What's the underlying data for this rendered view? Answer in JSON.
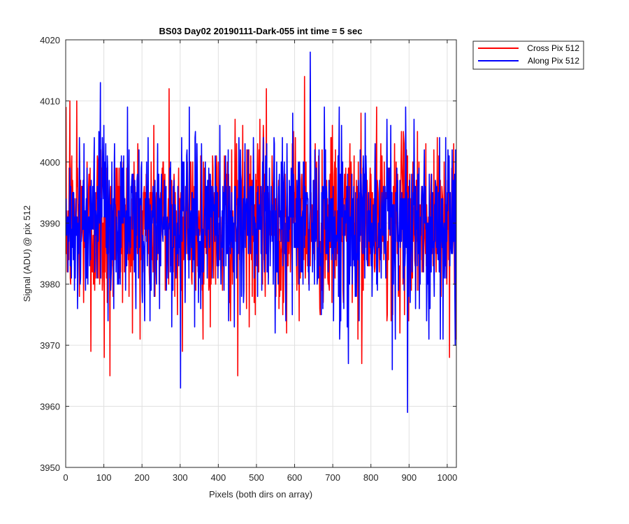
{
  "chart_data": {
    "type": "line",
    "title": "BS03 Day02 20190111-Dark-055 int time = 5 sec",
    "xlabel": "Pixels (both dirs on array)",
    "ylabel": "Signal (ADU) @ pix 512",
    "xlim": [
      0,
      1024
    ],
    "ylim": [
      3950,
      4020
    ],
    "xticks": [
      0,
      100,
      200,
      300,
      400,
      500,
      600,
      700,
      800,
      900,
      1000
    ],
    "yticks": [
      3950,
      3960,
      3970,
      3980,
      3990,
      4000,
      4010,
      4020
    ],
    "grid": true,
    "legend_position": "outside-top-right",
    "series_mean": 3990,
    "series_std": 7,
    "series_points": 1024,
    "series": [
      {
        "name": "Cross Pix 512",
        "color": "#ff0000",
        "extremes": [
          {
            "x": 10,
            "y": 4010
          },
          {
            "x": 28,
            "y": 4010
          },
          {
            "x": 65,
            "y": 3969
          },
          {
            "x": 100,
            "y": 3968
          },
          {
            "x": 115,
            "y": 3965
          },
          {
            "x": 270,
            "y": 4012
          },
          {
            "x": 305,
            "y": 3969
          },
          {
            "x": 450,
            "y": 3965
          },
          {
            "x": 525,
            "y": 4012
          },
          {
            "x": 625,
            "y": 4014
          },
          {
            "x": 775,
            "y": 3967
          },
          {
            "x": 1005,
            "y": 3968
          }
        ]
      },
      {
        "name": "Along Pix 512",
        "color": "#0000ff",
        "extremes": [
          {
            "x": 90,
            "y": 4013
          },
          {
            "x": 300,
            "y": 3963
          },
          {
            "x": 640,
            "y": 4018
          },
          {
            "x": 740,
            "y": 3967
          },
          {
            "x": 855,
            "y": 3966
          },
          {
            "x": 895,
            "y": 3959
          },
          {
            "x": 1020,
            "y": 3970
          }
        ]
      }
    ]
  }
}
